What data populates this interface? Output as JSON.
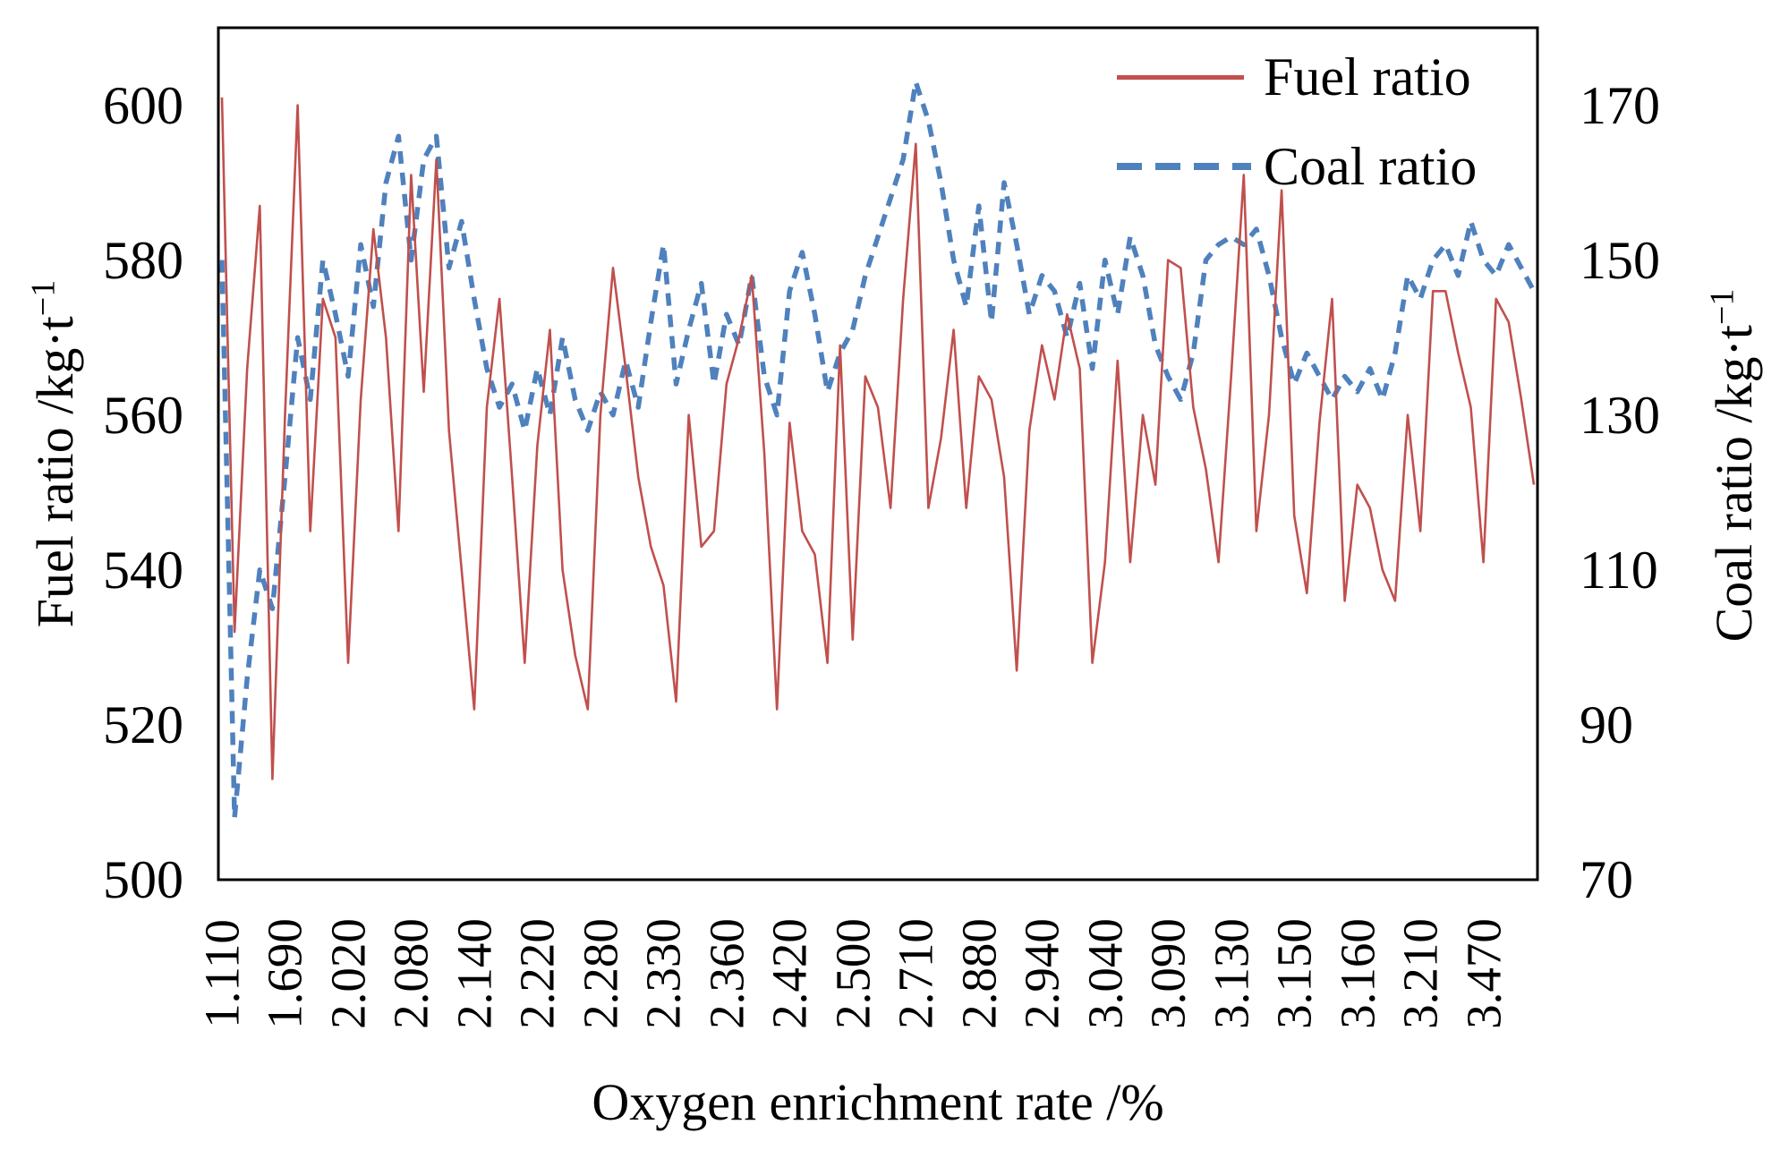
{
  "chart_data": {
    "type": "line",
    "title": "",
    "xlabel": "Oxygen enrichment rate /%",
    "ylabel_left": {
      "text": "Fuel ratio  /kg·t",
      "sup": "−1"
    },
    "ylabel_right": {
      "text": "Coal ratio /kg·t",
      "sup": "−1"
    },
    "left_axis": {
      "min": 500,
      "max": 610,
      "ticks": [
        600,
        580,
        560,
        540,
        520,
        500
      ]
    },
    "right_axis": {
      "min": 70,
      "max": 180,
      "ticks": [
        170,
        150,
        130,
        110,
        90,
        70
      ]
    },
    "x_tick_labels": [
      "1.110",
      "1.690",
      "2.020",
      "2.080",
      "2.140",
      "2.220",
      "2.280",
      "2.330",
      "2.360",
      "2.420",
      "2.500",
      "2.710",
      "2.880",
      "2.940",
      "3.040",
      "3.090",
      "3.130",
      "3.150",
      "3.160",
      "3.210",
      "3.470"
    ],
    "points_per_label": 5,
    "grid": false,
    "legend_position": "top-right-inside",
    "series": [
      {
        "name": "Fuel ratio",
        "axis": "left",
        "color": "#C0504D",
        "style": "solid",
        "values": [
          601,
          532,
          566,
          587,
          513,
          560,
          600,
          545,
          575,
          570,
          528,
          562,
          584,
          570,
          545,
          591,
          563,
          593,
          558,
          540,
          522,
          561,
          575,
          552,
          528,
          556,
          571,
          540,
          529,
          522,
          560,
          579,
          566,
          552,
          543,
          538,
          523,
          560,
          543,
          545,
          564,
          570,
          578,
          555,
          522,
          559,
          545,
          542,
          528,
          569,
          531,
          565,
          561,
          548,
          575,
          595,
          548,
          557,
          571,
          548,
          565,
          562,
          552,
          527,
          558,
          569,
          562,
          573,
          566,
          528,
          541,
          567,
          541,
          560,
          551,
          580,
          579,
          561,
          553,
          541,
          565,
          591,
          545,
          560,
          589,
          547,
          537,
          559,
          575,
          536,
          551,
          548,
          540,
          536,
          560,
          545,
          576,
          576,
          568,
          561,
          541,
          575,
          572,
          562,
          551
        ]
      },
      {
        "name": "Coal ratio",
        "axis": "right",
        "color": "#4F81BD",
        "style": "dashed",
        "values": [
          150,
          78,
          96,
          110,
          105,
          122,
          140,
          132,
          150,
          143,
          135,
          152,
          144,
          160,
          166,
          150,
          163,
          166,
          149,
          155,
          145,
          136,
          131,
          134,
          128,
          136,
          130,
          140,
          132,
          128,
          133,
          130,
          137,
          131,
          142,
          152,
          134,
          141,
          147,
          134,
          143,
          139,
          148,
          135,
          130,
          146,
          151,
          143,
          133,
          138,
          141,
          148,
          153,
          158,
          163,
          173,
          168,
          160,
          150,
          144,
          157,
          142,
          160,
          152,
          143,
          148,
          146,
          140,
          147,
          136,
          150,
          143,
          153,
          148,
          139,
          135,
          132,
          138,
          150,
          152,
          153,
          152,
          154,
          148,
          140,
          134,
          138,
          135,
          132,
          135,
          133,
          136,
          132,
          138,
          148,
          145,
          150,
          152,
          148,
          155,
          150,
          148,
          152,
          149,
          146
        ]
      }
    ]
  }
}
